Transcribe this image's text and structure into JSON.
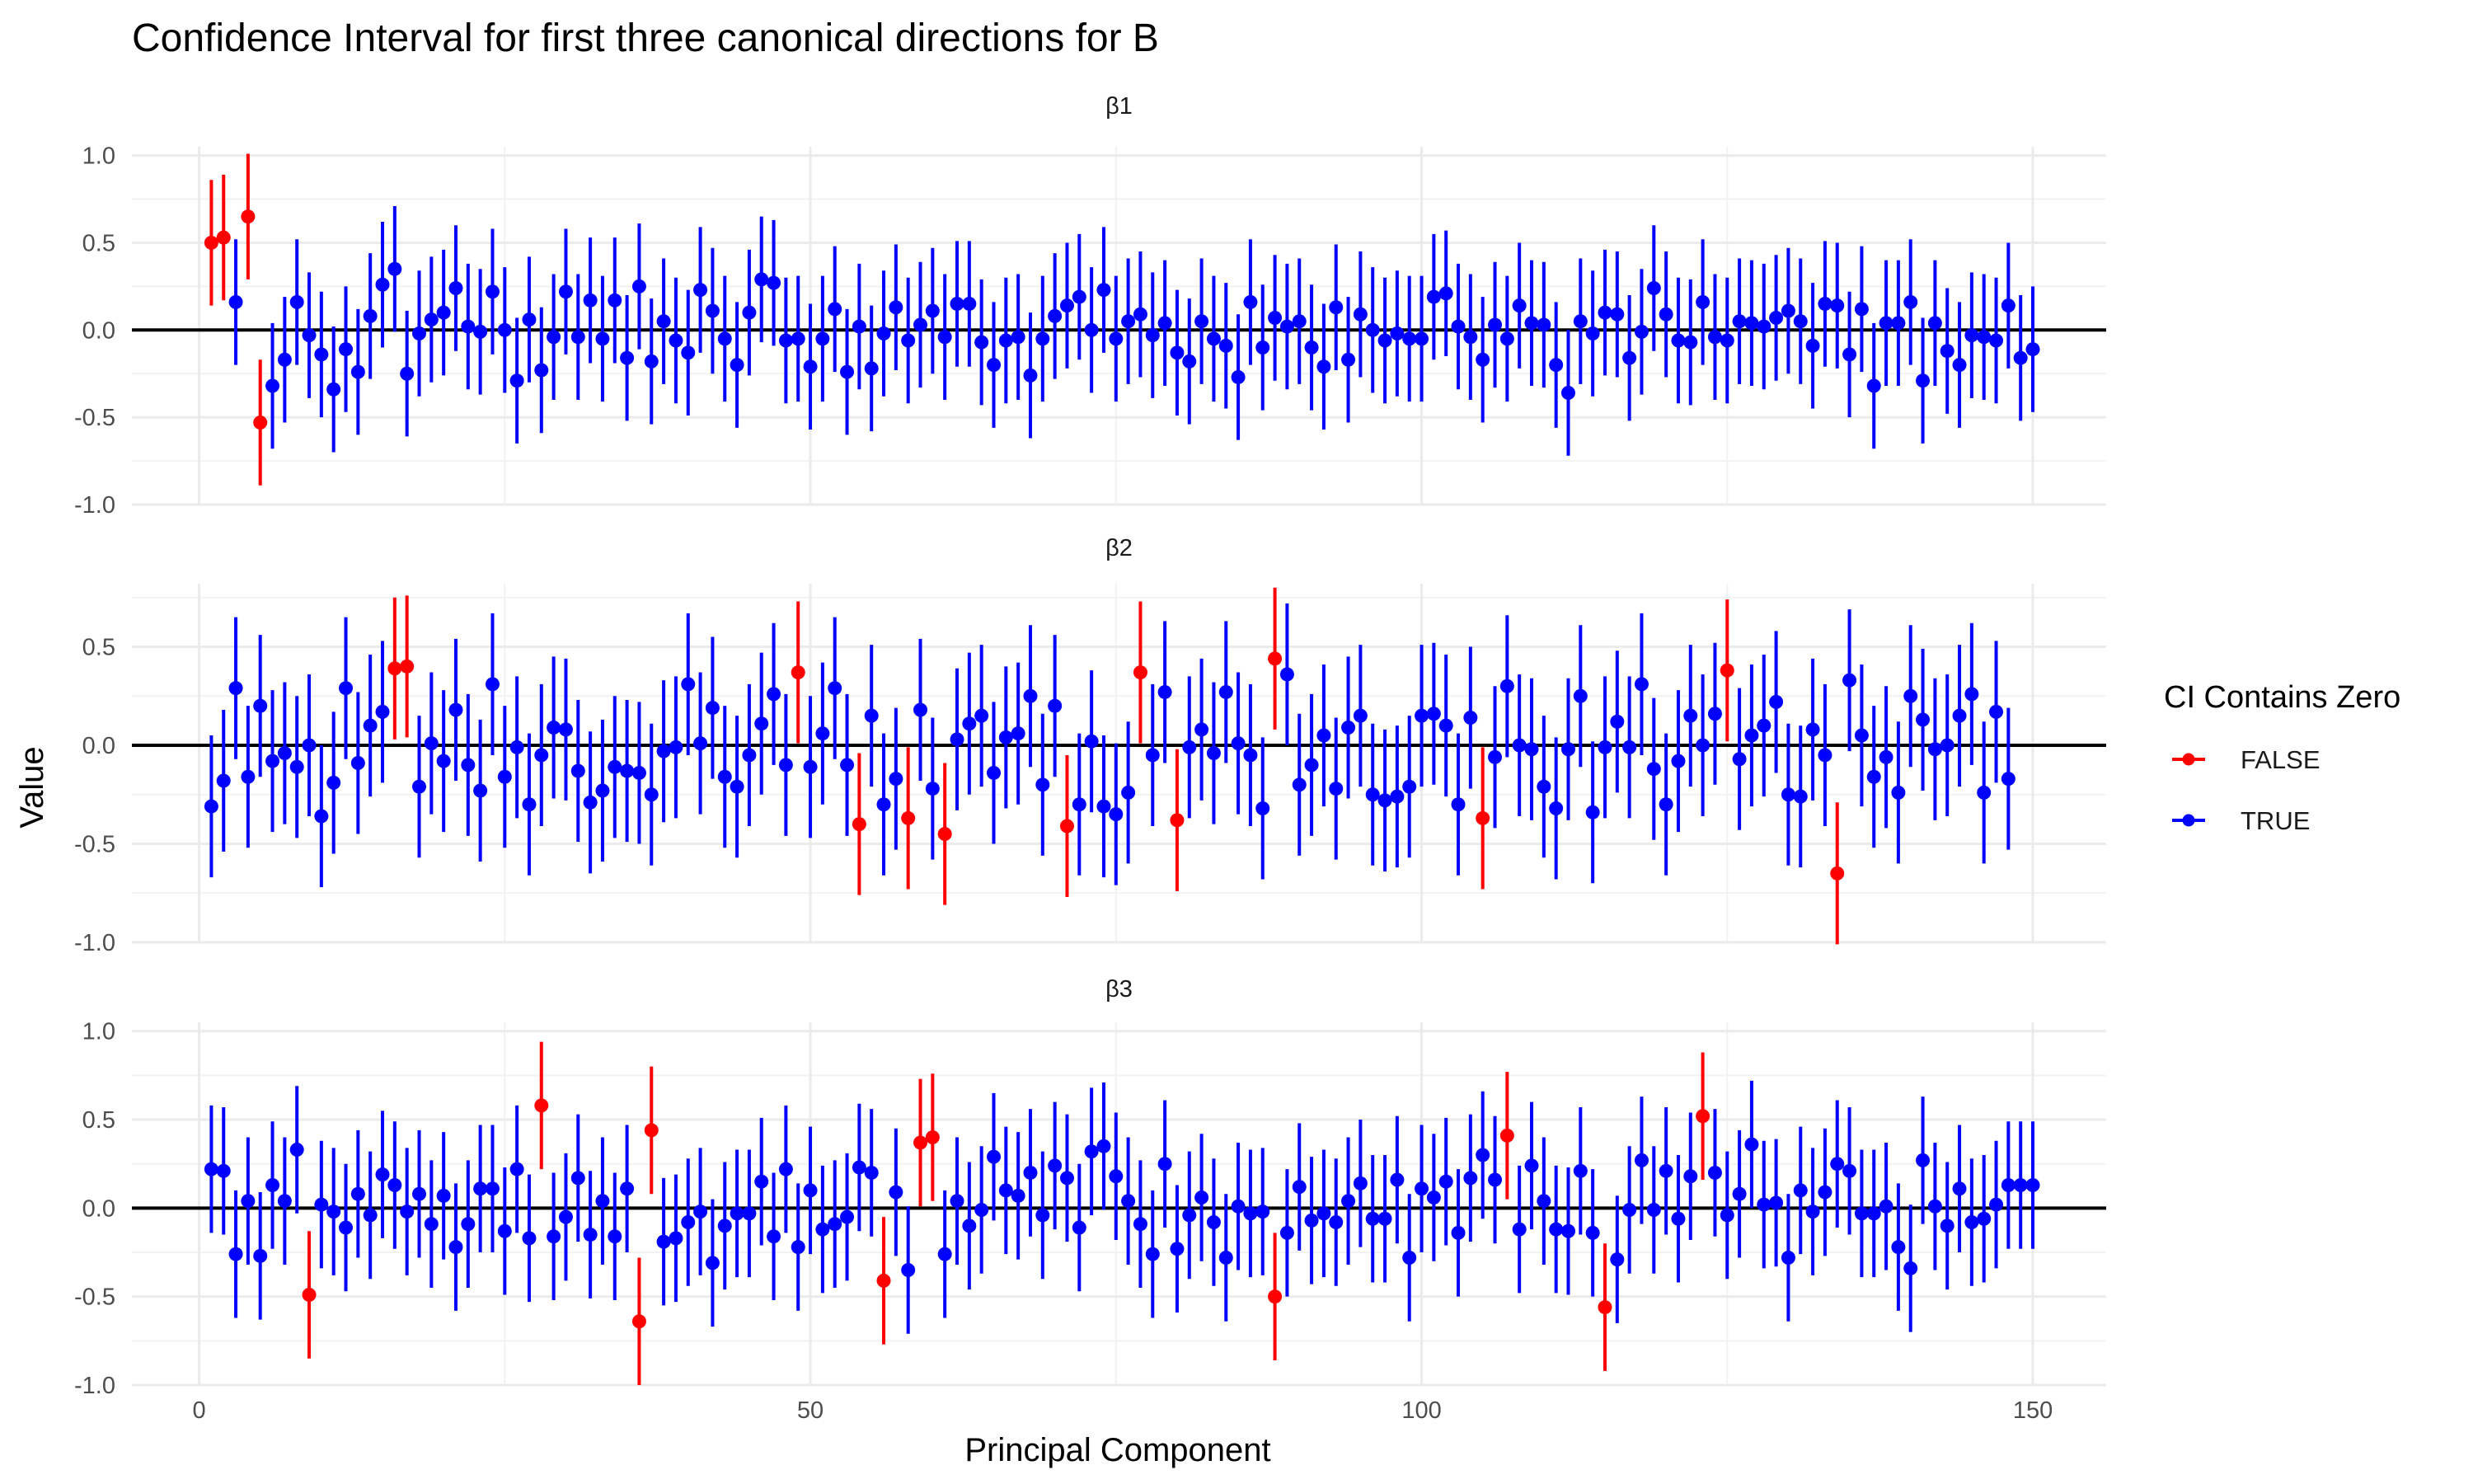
{
  "chart_data": {
    "type": "scatter",
    "subtype": "point-range (confidence intervals)",
    "title": "Confidence Interval for first three canonical directions for B",
    "xlabel": "Principal Component",
    "ylabel": "Value",
    "x_ticks": [
      0,
      50,
      100,
      150
    ],
    "xlim": [
      -5.5,
      156
    ],
    "reference_line_y": 0,
    "grid": true,
    "ci_half_width": 0.36,
    "legend": {
      "title": "CI Contains Zero",
      "position": "right",
      "items": [
        {
          "label": "FALSE",
          "color": "#ff0000"
        },
        {
          "label": "TRUE",
          "color": "#0000ff"
        }
      ]
    },
    "facets": [
      {
        "label": "β1",
        "ylim": [
          -1.0,
          1.05
        ],
        "y_ticks": [
          "1.0",
          "0.5",
          "0.0",
          "-0.5",
          "-1.0"
        ],
        "y_tick_values": [
          1.0,
          0.5,
          0.0,
          -0.5,
          -1.0
        ],
        "estimates": [
          0.5,
          0.53,
          0.16,
          0.65,
          -0.53,
          -0.32,
          -0.17,
          0.16,
          -0.03,
          -0.14,
          -0.34,
          -0.11,
          -0.24,
          0.08,
          0.26,
          0.35,
          -0.25,
          -0.02,
          0.06,
          0.1,
          0.24,
          0.02,
          -0.01,
          0.22,
          0.0,
          -0.29,
          0.06,
          -0.23,
          -0.04,
          0.22,
          -0.04,
          0.17,
          -0.05,
          0.17,
          -0.16,
          0.25,
          -0.18,
          0.05,
          -0.06,
          -0.13,
          0.23,
          0.11,
          -0.05,
          -0.2,
          0.1,
          0.29,
          0.27,
          -0.06,
          -0.05,
          -0.21,
          -0.05,
          0.12,
          -0.24,
          0.02,
          -0.22,
          -0.02,
          0.13,
          -0.06,
          0.03,
          0.11,
          -0.04,
          0.15,
          0.15,
          -0.07,
          -0.2,
          -0.06,
          -0.04,
          -0.26,
          -0.05,
          0.08,
          0.14,
          0.19,
          0.0,
          0.23,
          -0.05,
          0.05,
          0.09,
          -0.03,
          0.04,
          -0.13,
          -0.18,
          0.05,
          -0.05,
          -0.09,
          -0.27,
          0.16,
          -0.1,
          0.07,
          0.02,
          0.05,
          -0.1,
          -0.21,
          0.13,
          -0.17,
          0.09,
          0.0,
          -0.06,
          -0.02,
          -0.05,
          -0.05,
          0.19,
          0.21,
          0.02,
          -0.04,
          -0.17,
          0.03,
          -0.05,
          0.14,
          0.04,
          0.03,
          -0.2,
          -0.36,
          0.05,
          -0.02,
          0.1,
          0.09,
          -0.16,
          -0.01,
          0.24,
          0.09,
          -0.06,
          -0.07,
          0.16,
          -0.04,
          -0.06,
          0.05,
          0.04,
          0.02,
          0.07,
          0.11,
          0.05,
          -0.09,
          0.15,
          0.14,
          -0.14,
          0.12,
          -0.32,
          0.04,
          0.04,
          0.16,
          -0.29,
          0.04,
          -0.12,
          -0.2,
          -0.03,
          -0.04,
          -0.06,
          0.14,
          -0.16,
          -0.11
        ]
      },
      {
        "label": "β2",
        "ylim": [
          -1.0,
          0.82
        ],
        "y_ticks": [
          "0.5",
          "0.0",
          "-0.5",
          "-1.0"
        ],
        "y_tick_values": [
          0.5,
          0.0,
          -0.5,
          -1.0
        ],
        "estimates": [
          -0.31,
          -0.18,
          0.29,
          -0.16,
          0.2,
          -0.08,
          -0.04,
          -0.11,
          0.0,
          -0.36,
          -0.19,
          0.29,
          -0.09,
          0.1,
          0.17,
          0.39,
          0.4,
          -0.21,
          0.01,
          -0.08,
          0.18,
          -0.1,
          -0.23,
          0.31,
          -0.16,
          -0.01,
          -0.3,
          -0.05,
          0.09,
          0.08,
          -0.13,
          -0.29,
          -0.23,
          -0.11,
          -0.13,
          -0.14,
          -0.25,
          -0.03,
          -0.01,
          0.31,
          0.01,
          0.19,
          -0.16,
          -0.21,
          -0.05,
          0.11,
          0.26,
          -0.1,
          0.37,
          -0.11,
          0.06,
          0.29,
          -0.1,
          -0.4,
          0.15,
          -0.3,
          -0.17,
          -0.37,
          0.18,
          -0.22,
          -0.45,
          0.03,
          0.11,
          0.15,
          -0.14,
          0.04,
          0.06,
          0.25,
          -0.2,
          0.2,
          -0.41,
          -0.3,
          0.02,
          -0.31,
          -0.35,
          -0.24,
          0.37,
          -0.05,
          0.27,
          -0.38,
          -0.01,
          0.08,
          -0.04,
          0.27,
          0.01,
          -0.05,
          -0.32,
          0.44,
          0.36,
          -0.2,
          -0.1,
          0.05,
          -0.22,
          0.09,
          0.15,
          -0.25,
          -0.28,
          -0.26,
          -0.21,
          0.15,
          0.16,
          0.1,
          -0.3,
          0.14,
          -0.37,
          -0.06,
          0.3,
          0.0,
          -0.02,
          -0.21,
          -0.32,
          -0.02,
          0.25,
          -0.34,
          -0.01,
          0.12,
          -0.01,
          0.31,
          -0.12,
          -0.3,
          -0.08,
          0.15,
          0.0,
          0.16,
          0.38,
          -0.07,
          0.05,
          0.1,
          0.22,
          -0.25,
          -0.26,
          0.08,
          -0.05,
          -0.65,
          0.33,
          0.05,
          -0.16,
          -0.06,
          -0.24,
          0.25,
          0.13,
          -0.02,
          0.0,
          0.15,
          0.26,
          -0.24,
          0.17,
          -0.17
        ]
      },
      {
        "label": "β3",
        "ylim": [
          -1.0,
          1.05
        ],
        "y_ticks": [
          "1.0",
          "0.5",
          "0.0",
          "-0.5",
          "-1.0"
        ],
        "y_tick_values": [
          1.0,
          0.5,
          0.0,
          -0.5,
          -1.0
        ],
        "estimates": [
          0.22,
          0.21,
          -0.26,
          0.04,
          -0.27,
          0.13,
          0.04,
          0.33,
          -0.49,
          0.02,
          -0.02,
          -0.11,
          0.08,
          -0.04,
          0.19,
          0.13,
          -0.02,
          0.08,
          -0.09,
          0.07,
          -0.22,
          -0.09,
          0.11,
          0.11,
          -0.13,
          0.22,
          -0.17,
          0.58,
          -0.16,
          -0.05,
          0.17,
          -0.15,
          0.04,
          -0.16,
          0.11,
          -0.64,
          0.44,
          -0.19,
          -0.17,
          -0.08,
          -0.02,
          -0.31,
          -0.1,
          -0.03,
          -0.03,
          0.15,
          -0.16,
          0.22,
          -0.22,
          0.1,
          -0.12,
          -0.09,
          -0.05,
          0.23,
          0.2,
          -0.41,
          0.09,
          -0.35,
          0.37,
          0.4,
          -0.26,
          0.04,
          -0.1,
          -0.01,
          0.29,
          0.1,
          0.07,
          0.2,
          -0.04,
          0.24,
          0.17,
          -0.11,
          0.32,
          0.35,
          0.18,
          0.04,
          -0.09,
          -0.26,
          0.25,
          -0.23,
          -0.04,
          0.06,
          -0.08,
          -0.28,
          0.01,
          -0.03,
          -0.02,
          -0.5,
          -0.14,
          0.12,
          -0.07,
          -0.03,
          -0.08,
          0.04,
          0.14,
          -0.06,
          -0.06,
          0.16,
          -0.28,
          0.11,
          0.06,
          0.15,
          -0.14,
          0.17,
          0.3,
          0.16,
          0.41,
          -0.12,
          0.24,
          0.04,
          -0.12,
          -0.13,
          0.21,
          -0.14,
          -0.56,
          -0.29,
          -0.01,
          0.27,
          -0.01,
          0.21,
          -0.06,
          0.18,
          0.52,
          0.2,
          -0.04,
          0.08,
          0.36,
          0.02,
          0.03,
          -0.28,
          0.1,
          -0.02,
          0.09,
          0.25,
          0.21,
          -0.03,
          -0.03,
          0.01,
          -0.22,
          -0.34,
          0.27,
          0.01,
          -0.1,
          0.11,
          -0.08,
          -0.06,
          0.02,
          0.13,
          0.13,
          0.13
        ]
      }
    ]
  }
}
